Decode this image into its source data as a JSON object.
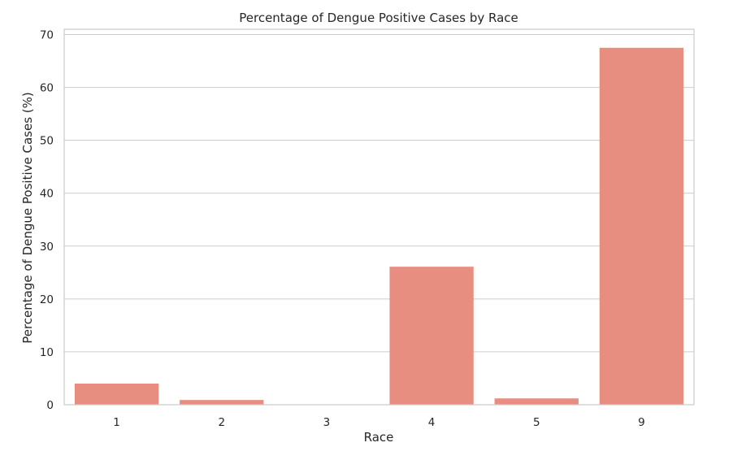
{
  "chart_data": {
    "type": "bar",
    "title": "Percentage of Dengue Positive Cases by Race",
    "xlabel": "Race",
    "ylabel": "Percentage of Dengue Positive Cases (%)",
    "categories": [
      "1",
      "2",
      "3",
      "4",
      "5",
      "9"
    ],
    "values": [
      4.0,
      0.9,
      0.0,
      26.1,
      1.2,
      67.5
    ],
    "ylim": [
      0,
      71
    ],
    "yticks": [
      0,
      10,
      20,
      30,
      40,
      50,
      60,
      70
    ],
    "grid": true,
    "legend": "none",
    "colors": {
      "bar": "#e88e80",
      "grid": "#cccccc",
      "axes_edge": "#cccccc",
      "text": "#262626",
      "background": "#ffffff"
    }
  }
}
